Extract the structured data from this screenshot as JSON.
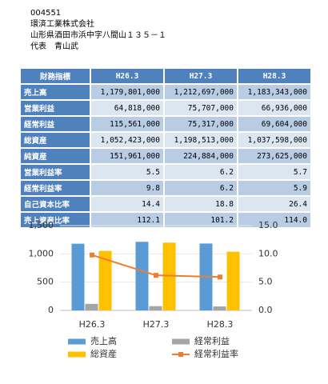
{
  "header": {
    "code": "004551",
    "company": "環済工業株式会社",
    "address": "山形県酒田市浜中字八間山１３５－１",
    "representative": "代表　青山武"
  },
  "table": {
    "header": [
      "財務指標",
      "H26.3",
      "H27.3",
      "H28.3"
    ],
    "rows": [
      [
        "売上高",
        "1,179,801,000",
        "1,212,697,000",
        "1,183,343,000"
      ],
      [
        "営業利益",
        "64,818,000",
        "75,707,000",
        "66,936,000"
      ],
      [
        "経常利益",
        "115,561,000",
        "75,317,000",
        "69,604,000"
      ],
      [
        "総資産",
        "1,052,423,000",
        "1,198,513,000",
        "1,037,598,000"
      ],
      [
        "純資産",
        "151,961,000",
        "224,884,000",
        "273,625,000"
      ],
      [
        "営業利益率",
        "5.5",
        "6.2",
        "5.7"
      ],
      [
        "経常利益率",
        "9.8",
        "6.2",
        "5.9"
      ],
      [
        "自己資本比率",
        "14.4",
        "18.8",
        "26.4"
      ],
      [
        "売上資産比率",
        "112.1",
        "101.2",
        "114.0"
      ]
    ]
  },
  "chart_data": {
    "type": "bar",
    "categories": [
      "H26.3",
      "H27.3",
      "H28.3"
    ],
    "series": [
      {
        "name": "売上高",
        "color": "#5b9bd5",
        "values": [
          1180,
          1213,
          1183
        ]
      },
      {
        "name": "経常利益",
        "color": "#a5a5a5",
        "values": [
          116,
          75,
          70
        ]
      },
      {
        "name": "総資産",
        "color": "#ffc000",
        "values": [
          1052,
          1199,
          1038
        ]
      },
      {
        "name": "経常利益率",
        "color": "#ed7d31",
        "type": "line",
        "axis": "y2",
        "values": [
          9.8,
          6.2,
          5.9
        ]
      }
    ],
    "ylim": [
      0,
      1500
    ],
    "yticks": [
      0,
      500,
      {
        "value": 1000,
        "label": "1,000"
      },
      {
        "value": 1500,
        "label": "1,500"
      }
    ],
    "y2lim": [
      0,
      15
    ],
    "y2ticks": [
      {
        "value": 0,
        "label": "0.0"
      },
      {
        "value": 5,
        "label": "5.0"
      },
      {
        "value": 10,
        "label": "10.0"
      },
      {
        "value": 15,
        "label": "15.0"
      }
    ],
    "grid": true
  }
}
